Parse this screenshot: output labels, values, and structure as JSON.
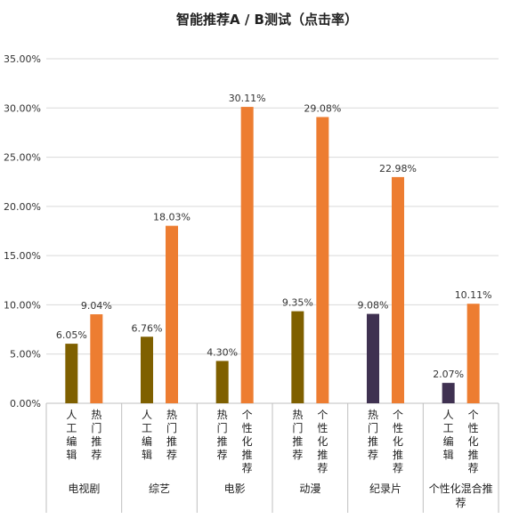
{
  "chart_data": {
    "type": "bar",
    "title": "智能推荐A / B测试（点击率）",
    "xlabel": "",
    "ylabel": "",
    "ylim": [
      0,
      35
    ],
    "yticks": [
      "0.00%",
      "5.00%",
      "10.00%",
      "15.00%",
      "20.00%",
      "25.00%",
      "30.00%",
      "35.00%"
    ],
    "grid": true,
    "legend": "none",
    "groups": [
      {
        "name": "电视剧",
        "bars": [
          {
            "label": "人工编辑",
            "value": 6.05,
            "display": "6.05%",
            "color": "#7f6000"
          },
          {
            "label": "热门推荐",
            "value": 9.04,
            "display": "9.04%",
            "color": "#ed7d31"
          }
        ]
      },
      {
        "name": "综艺",
        "bars": [
          {
            "label": "人工编辑",
            "value": 6.76,
            "display": "6.76%",
            "color": "#7f6000"
          },
          {
            "label": "热门推荐",
            "value": 18.03,
            "display": "18.03%",
            "color": "#ed7d31"
          }
        ]
      },
      {
        "name": "电影",
        "bars": [
          {
            "label": "热门推荐",
            "value": 4.3,
            "display": "4.30%",
            "color": "#7f6000"
          },
          {
            "label": "个性化推荐",
            "value": 30.11,
            "display": "30.11%",
            "color": "#ed7d31"
          }
        ]
      },
      {
        "name": "动漫",
        "bars": [
          {
            "label": "热门推荐",
            "value": 9.35,
            "display": "9.35%",
            "color": "#7f6000"
          },
          {
            "label": "个性化推荐",
            "value": 29.08,
            "display": "29.08%",
            "color": "#ed7d31"
          }
        ]
      },
      {
        "name": "纪录片",
        "bars": [
          {
            "label": "热门推荐",
            "value": 9.08,
            "display": "9.08%",
            "color": "#3f3151"
          },
          {
            "label": "个性化推荐",
            "value": 22.98,
            "display": "22.98%",
            "color": "#ed7d31"
          }
        ]
      },
      {
        "name": "个性化混合推荐",
        "bars": [
          {
            "label": "人工编辑",
            "value": 2.07,
            "display": "2.07%",
            "color": "#3f3151"
          },
          {
            "label": "个性化推荐",
            "value": 10.11,
            "display": "10.11%",
            "color": "#ed7d31"
          }
        ]
      }
    ]
  }
}
